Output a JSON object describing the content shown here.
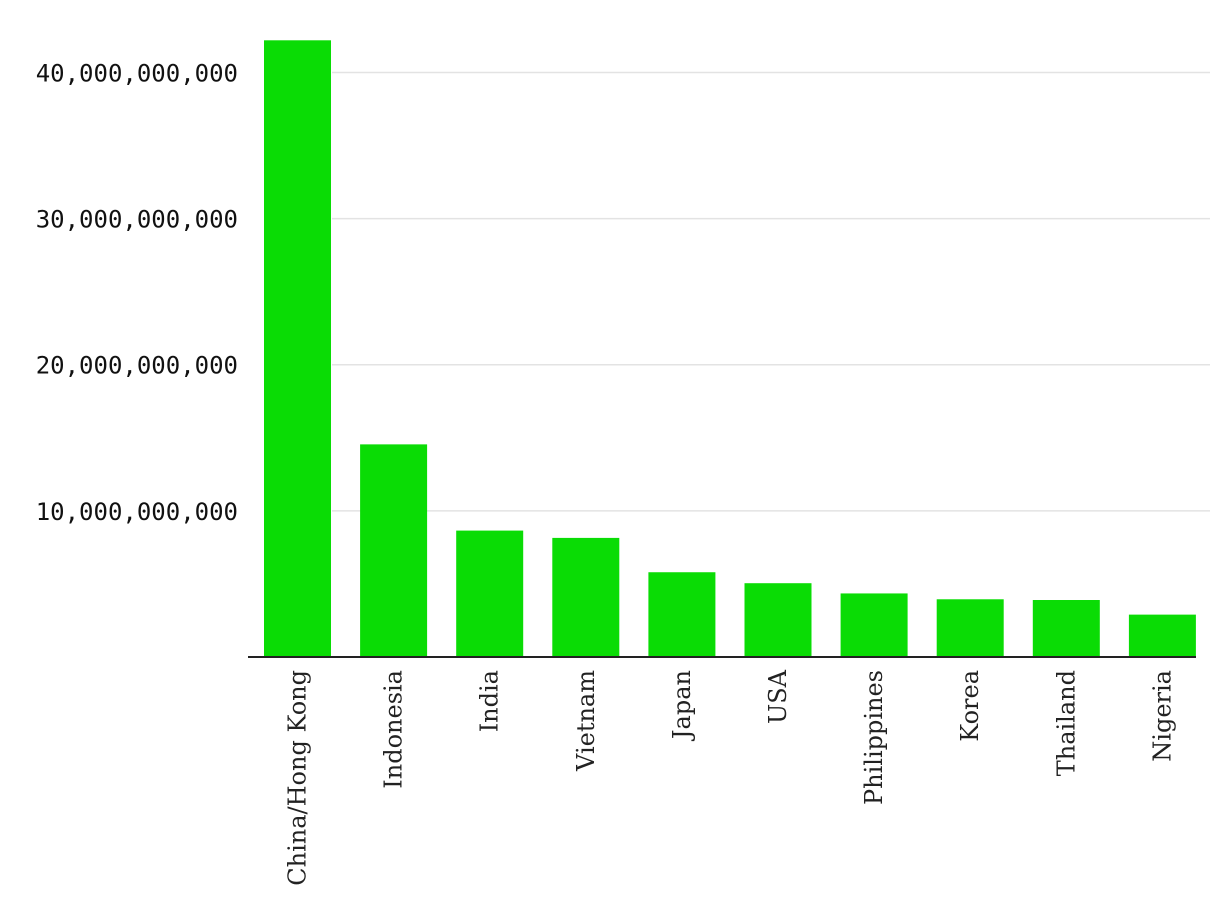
{
  "chart_data": {
    "type": "bar",
    "title": "",
    "xlabel": "",
    "ylabel": "",
    "categories": [
      "China/Hong Kong",
      "Indonesia",
      "India",
      "Vietnam",
      "Japan",
      "USA",
      "Philippines",
      "Korea",
      "Thailand",
      "Nigeria"
    ],
    "values": [
      42200000000,
      14550000000,
      8650000000,
      8150000000,
      5800000000,
      5050000000,
      4350000000,
      3950000000,
      3900000000,
      2900000000
    ],
    "ylim": [
      0,
      44000000000
    ],
    "yticks": [
      10000000000,
      20000000000,
      30000000000,
      40000000000
    ],
    "ytick_labels": [
      "10,000,000,000",
      "20,000,000,000",
      "30,000,000,000",
      "40,000,000,000"
    ],
    "bar_color": "#0adc05",
    "grid": true,
    "legend": "none"
  }
}
